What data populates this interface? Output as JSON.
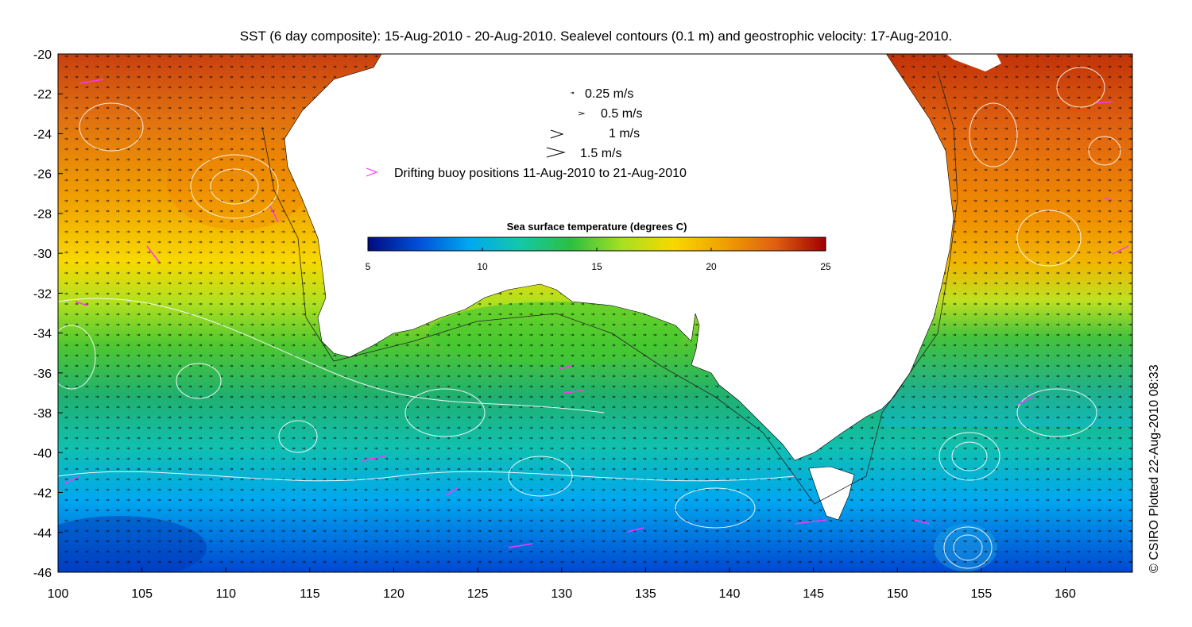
{
  "title": "SST (6 day composite): 15-Aug-2010 - 20-Aug-2010. Sealevel contours (0.1 m) and geostrophic velocity: 17-Aug-2010.",
  "credit": "© CSIRO Plotted 22-Aug-2010 08:33",
  "axes": {
    "lon_range": [
      100,
      164
    ],
    "lat_range": [
      -46,
      -20
    ],
    "x_ticks": [
      "100",
      "105",
      "110",
      "115",
      "120",
      "125",
      "130",
      "135",
      "140",
      "145",
      "150",
      "155",
      "160"
    ],
    "y_ticks": [
      "-20",
      "-22",
      "-24",
      "-26",
      "-28",
      "-30",
      "-32",
      "-34",
      "-36",
      "-38",
      "-40",
      "-42",
      "-44",
      "-46"
    ]
  },
  "velocity_legend": [
    {
      "label": "0.25 m/s",
      "speed": 0.25
    },
    {
      "label": "0.5 m/s",
      "speed": 0.5
    },
    {
      "label": "1 m/s",
      "speed": 1
    },
    {
      "label": "1.5 m/s",
      "speed": 1.5
    }
  ],
  "buoy_legend": {
    "label": "Drifting buoy positions 11-Aug-2010 to 21-Aug-2010",
    "color": "#ff33ff"
  },
  "colorbar": {
    "title": "Sea surface temperature (degrees C)",
    "min": 5,
    "max": 25,
    "tick_labels": [
      "5",
      "10",
      "15",
      "20",
      "25"
    ],
    "colors": [
      "#000a80",
      "#0050d8",
      "#00a8f0",
      "#14c8a8",
      "#2cc040",
      "#a8e020",
      "#f8d800",
      "#f0a000",
      "#e06010",
      "#a00000"
    ]
  },
  "land_color": "#ffffff",
  "contour_color": "#ffffff",
  "arrow_color": "#000000"
}
